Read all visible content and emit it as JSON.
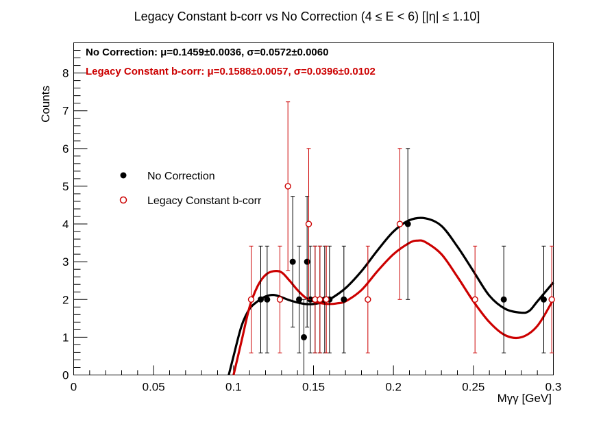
{
  "chart_data": {
    "type": "scatter",
    "title": "Legacy Constant b-corr vs No Correction   (4 ≤ E < 6)   [|η| ≤ 1.10]",
    "xlabel": "Mγγ [GeV]",
    "ylabel": "Counts",
    "xlim": [
      0,
      0.3
    ],
    "ylim": [
      0,
      8.8
    ],
    "x_ticks": [
      "0",
      "0.05",
      "0.1",
      "0.15",
      "0.2",
      "0.25",
      "0.3"
    ],
    "x_tick_values": [
      0,
      0.05,
      0.1,
      0.15,
      0.2,
      0.25,
      0.3
    ],
    "y_ticks": [
      "0",
      "1",
      "2",
      "3",
      "4",
      "5",
      "6",
      "7",
      "8"
    ],
    "y_tick_values": [
      0,
      1,
      2,
      3,
      4,
      5,
      6,
      7,
      8
    ],
    "legend_position": "left",
    "grid": false,
    "series": [
      {
        "name": "No Correction",
        "color": "#000000",
        "marker": "filled-circle",
        "fit_label": "No Correction: μ=0.1459±0.0036, σ=0.0572±0.0060",
        "x": [
          0.117,
          0.121,
          0.137,
          0.141,
          0.144,
          0.146,
          0.148,
          0.151,
          0.154,
          0.157,
          0.16,
          0.169,
          0.209,
          0.269,
          0.294
        ],
        "y": [
          2,
          2,
          3,
          2,
          1,
          3,
          2,
          2,
          2,
          2,
          2,
          2,
          4,
          2,
          2
        ],
        "fit_x": [
          0.097,
          0.1,
          0.105,
          0.11,
          0.115,
          0.12,
          0.125,
          0.13,
          0.135,
          0.14,
          0.145,
          0.15,
          0.155,
          0.16,
          0.17,
          0.18,
          0.19,
          0.2,
          0.21,
          0.22,
          0.23,
          0.24,
          0.25,
          0.26,
          0.27,
          0.28,
          0.285,
          0.29,
          0.3
        ],
        "fit_y": [
          0,
          0.5,
          1.3,
          1.75,
          1.95,
          2.08,
          2.12,
          2.06,
          1.98,
          1.92,
          1.88,
          1.88,
          1.92,
          2.0,
          2.3,
          2.75,
          3.3,
          3.8,
          4.1,
          4.15,
          3.95,
          3.4,
          2.75,
          2.1,
          1.75,
          1.65,
          1.7,
          1.95,
          2.45
        ]
      },
      {
        "name": "Legacy Constant b-corr",
        "color": "#cc0000",
        "marker": "open-circle",
        "fit_label": "Legacy Constant b-corr: μ=0.1588±0.0057, σ=0.0396±0.0102",
        "x": [
          0.111,
          0.129,
          0.134,
          0.147,
          0.151,
          0.154,
          0.158,
          0.184,
          0.204,
          0.251,
          0.299
        ],
        "y": [
          2,
          2,
          5,
          4,
          2,
          2,
          2,
          2,
          4,
          2,
          2
        ],
        "fit_x": [
          0.1,
          0.105,
          0.11,
          0.115,
          0.12,
          0.125,
          0.13,
          0.135,
          0.14,
          0.145,
          0.15,
          0.155,
          0.16,
          0.165,
          0.17,
          0.18,
          0.19,
          0.2,
          0.21,
          0.215,
          0.22,
          0.23,
          0.24,
          0.25,
          0.26,
          0.27,
          0.28,
          0.29,
          0.3
        ],
        "fit_y": [
          0,
          0.9,
          1.8,
          2.35,
          2.65,
          2.75,
          2.72,
          2.5,
          2.25,
          2.05,
          1.95,
          1.9,
          1.88,
          1.9,
          1.95,
          2.25,
          2.75,
          3.2,
          3.5,
          3.56,
          3.52,
          3.2,
          2.6,
          1.95,
          1.4,
          1.05,
          1.0,
          1.3,
          2.0
        ]
      }
    ]
  }
}
